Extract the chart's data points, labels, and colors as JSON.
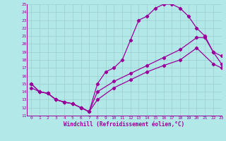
{
  "line1_x": [
    0,
    1,
    2,
    3,
    4,
    5,
    6,
    7,
    8,
    9,
    10,
    11,
    12,
    13,
    14,
    15,
    16,
    17,
    18,
    19,
    20,
    21,
    22,
    23
  ],
  "line1_y": [
    15,
    14,
    13.8,
    13,
    12.7,
    12.5,
    12,
    11.5,
    15,
    16.5,
    17,
    18,
    20.5,
    23,
    23.5,
    24.5,
    25,
    25,
    24.5,
    23.5,
    22,
    21,
    19,
    18.5
  ],
  "line2_x": [
    0,
    1,
    2,
    3,
    4,
    5,
    6,
    7,
    8,
    10,
    12,
    14,
    16,
    18,
    20,
    21,
    22,
    23
  ],
  "line2_y": [
    15,
    14,
    13.8,
    13,
    12.7,
    12.5,
    12,
    11.5,
    14.0,
    15.3,
    16.3,
    17.3,
    18.3,
    19.3,
    20.8,
    20.8,
    19.0,
    17.5
  ],
  "line3_x": [
    0,
    1,
    2,
    3,
    4,
    5,
    6,
    7,
    8,
    10,
    12,
    14,
    16,
    18,
    20,
    22,
    23
  ],
  "line3_y": [
    14.5,
    14.0,
    13.8,
    13,
    12.7,
    12.5,
    12,
    11.5,
    13.0,
    14.5,
    15.5,
    16.5,
    17.3,
    18.0,
    19.5,
    17.5,
    17.0
  ],
  "line_color": "#990099",
  "bg_color": "#b3e8e8",
  "grid_color": "#9ecece",
  "xlabel": "Windchill (Refroidissement éolien,°C)",
  "xlim": [
    -0.5,
    23
  ],
  "ylim": [
    11,
    25
  ],
  "xticks": [
    0,
    1,
    2,
    3,
    4,
    5,
    6,
    7,
    8,
    9,
    10,
    11,
    12,
    13,
    14,
    15,
    16,
    17,
    18,
    19,
    20,
    21,
    22,
    23
  ],
  "yticks": [
    11,
    12,
    13,
    14,
    15,
    16,
    17,
    18,
    19,
    20,
    21,
    22,
    23,
    24,
    25
  ]
}
